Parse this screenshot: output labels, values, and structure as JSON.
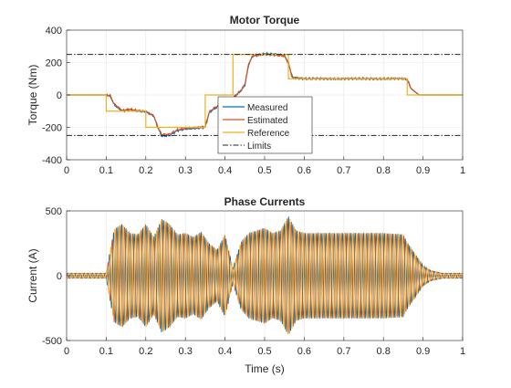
{
  "chart_data": [
    {
      "type": "line",
      "title": "Motor Torque",
      "xlabel": "",
      "ylabel": "Torque (Nm)",
      "xlim": [
        0,
        1
      ],
      "ylim": [
        -400,
        400
      ],
      "xticks": [
        "0",
        "0.1",
        "0.2",
        "0.3",
        "0.4",
        "0.5",
        "0.6",
        "0.7",
        "0.8",
        "0.9",
        "1"
      ],
      "yticks": [
        "400",
        "200",
        "0",
        "-200",
        "-400"
      ],
      "grid": true,
      "legend_position": "bottom-center",
      "colors": {
        "Measured": "#0072BD",
        "Estimated": "#D95319",
        "Reference": "#EDB120",
        "Limits": "#262626"
      },
      "series": [
        {
          "name": "Measured",
          "x": [
            0,
            0.1,
            0.11,
            0.12,
            0.14,
            0.16,
            0.18,
            0.2,
            0.22,
            0.23,
            0.24,
            0.26,
            0.28,
            0.3,
            0.33,
            0.35,
            0.36,
            0.37,
            0.39,
            0.41,
            0.42,
            0.44,
            0.45,
            0.46,
            0.47,
            0.5,
            0.53,
            0.55,
            0.56,
            0.57,
            0.6,
            0.7,
            0.8,
            0.85,
            0.86,
            0.87,
            0.89,
            1.0
          ],
          "y": [
            0,
            0,
            -5,
            -60,
            -100,
            -90,
            -100,
            -105,
            -130,
            -200,
            -255,
            -250,
            -220,
            -210,
            -205,
            -200,
            -110,
            -90,
            -60,
            -40,
            -20,
            25,
            60,
            190,
            240,
            255,
            250,
            245,
            200,
            110,
            100,
            100,
            100,
            100,
            95,
            40,
            0,
            0
          ]
        },
        {
          "name": "Estimated",
          "x": [
            0,
            0.1,
            0.11,
            0.12,
            0.14,
            0.16,
            0.18,
            0.2,
            0.22,
            0.23,
            0.24,
            0.26,
            0.28,
            0.3,
            0.33,
            0.35,
            0.36,
            0.37,
            0.39,
            0.41,
            0.42,
            0.44,
            0.45,
            0.46,
            0.47,
            0.5,
            0.53,
            0.55,
            0.56,
            0.57,
            0.6,
            0.7,
            0.8,
            0.85,
            0.86,
            0.87,
            0.89,
            1.0
          ],
          "y": [
            0,
            0,
            -5,
            -55,
            -95,
            -88,
            -98,
            -102,
            -128,
            -195,
            -245,
            -242,
            -215,
            -205,
            -200,
            -195,
            -105,
            -85,
            -55,
            -38,
            -18,
            28,
            65,
            195,
            242,
            250,
            245,
            240,
            195,
            105,
            100,
            100,
            100,
            100,
            95,
            38,
            0,
            0
          ]
        },
        {
          "name": "Reference",
          "x": [
            0,
            0.1,
            0.1,
            0.2,
            0.2,
            0.35,
            0.35,
            0.42,
            0.42,
            0.56,
            0.56,
            0.86,
            0.86,
            1.0
          ],
          "y": [
            0,
            0,
            -100,
            -100,
            -200,
            -200,
            0,
            0,
            250,
            250,
            100,
            100,
            0,
            0
          ]
        },
        {
          "name": "Limits",
          "x": [
            0,
            1
          ],
          "y": [
            250,
            250
          ]
        },
        {
          "name": "Limits",
          "x": [
            0,
            1
          ],
          "y": [
            -250,
            -250
          ]
        }
      ]
    },
    {
      "type": "line",
      "title": "Phase Currents",
      "xlabel": "Time (s)",
      "ylabel": "Current (A)",
      "xlim": [
        0,
        1
      ],
      "ylim": [
        -500,
        500
      ],
      "xticks": [
        "0",
        "0.1",
        "0.2",
        "0.3",
        "0.4",
        "0.5",
        "0.6",
        "0.7",
        "0.8",
        "0.9",
        "1"
      ],
      "yticks": [
        "500",
        "0",
        "-500"
      ],
      "grid": true,
      "colors": [
        "#0072BD",
        "#D95319",
        "#EDB120"
      ],
      "envelope": {
        "x": [
          0,
          0.1,
          0.11,
          0.12,
          0.14,
          0.16,
          0.18,
          0.2,
          0.22,
          0.24,
          0.26,
          0.28,
          0.3,
          0.32,
          0.34,
          0.36,
          0.38,
          0.4,
          0.42,
          0.44,
          0.46,
          0.48,
          0.5,
          0.52,
          0.54,
          0.56,
          0.58,
          0.6,
          0.65,
          0.7,
          0.75,
          0.8,
          0.85,
          0.86,
          0.88,
          0.9,
          0.92,
          0.95,
          1.0
        ],
        "amplitude": [
          20,
          20,
          200,
          360,
          400,
          330,
          320,
          400,
          300,
          440,
          400,
          320,
          330,
          300,
          340,
          250,
          200,
          320,
          60,
          260,
          330,
          350,
          370,
          330,
          350,
          460,
          350,
          330,
          330,
          330,
          330,
          330,
          320,
          260,
          170,
          80,
          40,
          20,
          20
        ]
      }
    }
  ]
}
